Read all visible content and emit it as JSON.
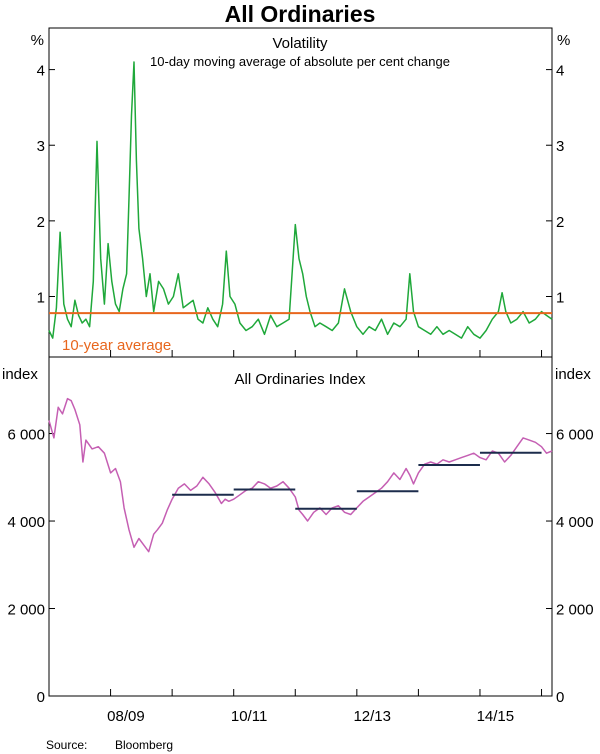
{
  "chart_data": {
    "type": "line",
    "title": "All Ordinaries",
    "source_label": "Source:",
    "source": "Bloomberg",
    "x_tick_labels": [
      "08/09",
      "10/11",
      "12/13",
      "14/15"
    ],
    "x_range": [
      2007.5,
      2015.67
    ],
    "panels": [
      {
        "id": "volatility",
        "title": "Volatility",
        "subtitle": "10-day moving average of absolute per cent change",
        "y_unit_left": "%",
        "y_unit_right": "%",
        "ylim": [
          0.2,
          4.55
        ],
        "yticks": [
          1,
          2,
          3,
          4
        ],
        "ytick_labels": [
          "1",
          "2",
          "3",
          "4"
        ],
        "annotation": "10-year average",
        "series": [
          {
            "name": "Volatility",
            "color": "#1fa83a",
            "x": [
              2007.5,
              2007.56,
              2007.62,
              2007.68,
              2007.74,
              2007.8,
              2007.86,
              2007.92,
              2007.98,
              2008.04,
              2008.1,
              2008.16,
              2008.22,
              2008.28,
              2008.34,
              2008.4,
              2008.46,
              2008.52,
              2008.58,
              2008.64,
              2008.7,
              2008.76,
              2008.8,
              2008.84,
              2008.88,
              2008.92,
              2008.96,
              2009.02,
              2009.08,
              2009.14,
              2009.2,
              2009.28,
              2009.36,
              2009.44,
              2009.52,
              2009.6,
              2009.68,
              2009.76,
              2009.84,
              2009.92,
              2010.0,
              2010.08,
              2010.16,
              2010.24,
              2010.32,
              2010.38,
              2010.44,
              2010.52,
              2010.6,
              2010.7,
              2010.8,
              2010.9,
              2011.0,
              2011.1,
              2011.2,
              2011.3,
              2011.4,
              2011.5,
              2011.56,
              2011.62,
              2011.68,
              2011.74,
              2011.82,
              2011.9,
              2012.0,
              2012.1,
              2012.2,
              2012.3,
              2012.4,
              2012.5,
              2012.6,
              2012.7,
              2012.8,
              2012.9,
              2013.0,
              2013.1,
              2013.2,
              2013.3,
              2013.36,
              2013.42,
              2013.5,
              2013.6,
              2013.7,
              2013.8,
              2013.9,
              2014.0,
              2014.1,
              2014.2,
              2014.3,
              2014.4,
              2014.5,
              2014.6,
              2014.7,
              2014.8,
              2014.86,
              2014.92,
              2015.0,
              2015.1,
              2015.2,
              2015.3,
              2015.4,
              2015.5,
              2015.58,
              2015.67
            ],
            "values": [
              0.55,
              0.45,
              0.85,
              1.85,
              0.9,
              0.7,
              0.6,
              0.95,
              0.75,
              0.65,
              0.7,
              0.6,
              1.2,
              3.05,
              1.5,
              0.9,
              1.7,
              1.2,
              0.9,
              0.8,
              1.1,
              1.3,
              2.3,
              3.4,
              4.1,
              2.8,
              1.9,
              1.5,
              1.0,
              1.3,
              0.8,
              1.2,
              1.1,
              0.9,
              1.0,
              1.3,
              0.85,
              0.9,
              0.95,
              0.7,
              0.65,
              0.85,
              0.7,
              0.6,
              0.9,
              1.6,
              1.0,
              0.9,
              0.65,
              0.55,
              0.6,
              0.7,
              0.5,
              0.75,
              0.6,
              0.65,
              0.7,
              1.95,
              1.5,
              1.3,
              1.0,
              0.8,
              0.6,
              0.65,
              0.6,
              0.55,
              0.65,
              1.1,
              0.8,
              0.6,
              0.5,
              0.6,
              0.55,
              0.7,
              0.5,
              0.65,
              0.6,
              0.7,
              1.3,
              0.8,
              0.6,
              0.55,
              0.5,
              0.6,
              0.5,
              0.55,
              0.5,
              0.45,
              0.6,
              0.5,
              0.45,
              0.55,
              0.7,
              0.8,
              1.05,
              0.8,
              0.65,
              0.7,
              0.8,
              0.65,
              0.7,
              0.8,
              0.75,
              0.7
            ]
          },
          {
            "name": "10-year average",
            "color": "#e8661d",
            "x": [
              2007.5,
              2015.67
            ],
            "values": [
              0.78,
              0.78
            ]
          }
        ]
      },
      {
        "id": "index",
        "title": "All Ordinaries Index",
        "y_unit_left": "index",
        "y_unit_right": "index",
        "ylim": [
          0,
          7750
        ],
        "yticks": [
          0,
          2000,
          4000,
          6000
        ],
        "ytick_labels": [
          "0",
          "2 000",
          "4 000",
          "6 000"
        ],
        "series": [
          {
            "name": "All Ordinaries Index",
            "color": "#c55fb3",
            "x": [
              2007.5,
              2007.58,
              2007.65,
              2007.72,
              2007.8,
              2007.86,
              2007.92,
              2008.0,
              2008.05,
              2008.1,
              2008.2,
              2008.3,
              2008.4,
              2008.5,
              2008.58,
              2008.66,
              2008.72,
              2008.8,
              2008.88,
              2008.96,
              2009.04,
              2009.12,
              2009.2,
              2009.26,
              2009.34,
              2009.42,
              2009.5,
              2009.6,
              2009.7,
              2009.8,
              2009.9,
              2010.0,
              2010.1,
              2010.2,
              2010.3,
              2010.36,
              2010.42,
              2010.5,
              2010.6,
              2010.7,
              2010.8,
              2010.9,
              2011.0,
              2011.1,
              2011.2,
              2011.3,
              2011.4,
              2011.5,
              2011.56,
              2011.62,
              2011.7,
              2011.8,
              2011.9,
              2012.0,
              2012.1,
              2012.2,
              2012.3,
              2012.4,
              2012.5,
              2012.6,
              2012.7,
              2012.8,
              2012.9,
              2013.0,
              2013.1,
              2013.2,
              2013.3,
              2013.36,
              2013.42,
              2013.5,
              2013.6,
              2013.7,
              2013.8,
              2013.9,
              2014.0,
              2014.1,
              2014.2,
              2014.3,
              2014.4,
              2014.5,
              2014.6,
              2014.7,
              2014.8,
              2014.9,
              2015.0,
              2015.1,
              2015.2,
              2015.3,
              2015.4,
              2015.5,
              2015.58,
              2015.67
            ],
            "values": [
              6300,
              5900,
              6600,
              6450,
              6800,
              6750,
              6550,
              6200,
              5350,
              5850,
              5650,
              5700,
              5550,
              5100,
              5200,
              4900,
              4300,
              3800,
              3400,
              3600,
              3450,
              3300,
              3700,
              3800,
              3950,
              4250,
              4500,
              4750,
              4850,
              4700,
              4800,
              5000,
              4850,
              4650,
              4400,
              4500,
              4450,
              4500,
              4600,
              4700,
              4750,
              4900,
              4850,
              4750,
              4800,
              4900,
              4750,
              4550,
              4250,
              4150,
              4000,
              4200,
              4300,
              4150,
              4300,
              4350,
              4200,
              4150,
              4300,
              4450,
              4550,
              4650,
              4750,
              4900,
              5100,
              4950,
              5200,
              5050,
              4850,
              5100,
              5300,
              5350,
              5300,
              5400,
              5350,
              5400,
              5450,
              5500,
              5550,
              5450,
              5400,
              5600,
              5550,
              5350,
              5500,
              5700,
              5900,
              5850,
              5800,
              5700,
              5550,
              5600
            ]
          },
          {
            "name": "Average segments",
            "color": "#1c2c4c",
            "segments": [
              {
                "x": [
                  2009.5,
                  2010.5
                ],
                "value": 4600
              },
              {
                "x": [
                  2010.5,
                  2011.5
                ],
                "value": 4720
              },
              {
                "x": [
                  2011.5,
                  2012.5
                ],
                "value": 4280
              },
              {
                "x": [
                  2012.5,
                  2013.5
                ],
                "value": 4680
              },
              {
                "x": [
                  2013.5,
                  2014.5
                ],
                "value": 5280
              },
              {
                "x": [
                  2014.5,
                  2015.5
                ],
                "value": 5560
              }
            ]
          }
        ]
      }
    ]
  }
}
